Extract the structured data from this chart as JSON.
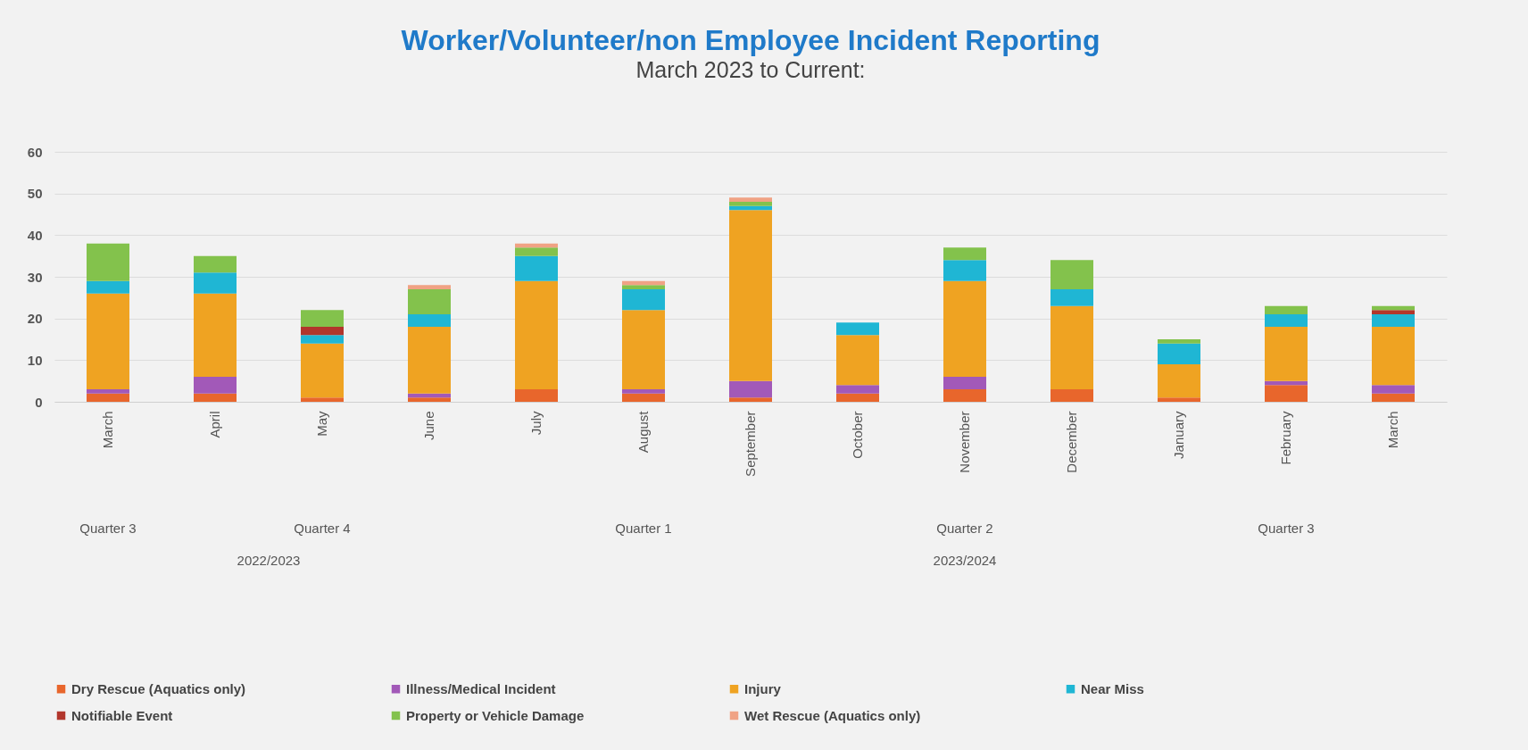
{
  "chart_data": {
    "type": "bar",
    "title": "Worker/Volunteer/non Employee Incident Reporting",
    "subtitle": "March 2023 to Current:",
    "stacked": true,
    "grid": "y",
    "legend": "bottom",
    "ylim": [
      0,
      60
    ],
    "yticks": [
      0,
      10,
      20,
      30,
      40,
      50,
      60
    ],
    "categories": [
      "March",
      "April",
      "May",
      "June",
      "July",
      "August",
      "September",
      "October",
      "November",
      "December",
      "January",
      "February",
      "March"
    ],
    "series": [
      {
        "name": "Dry Rescue (Aquatics only)",
        "color": "#e8662c",
        "values": [
          2,
          2,
          1,
          1,
          3,
          2,
          1,
          2,
          3,
          3,
          1,
          4,
          2
        ]
      },
      {
        "name": "Illness/Medical Incident",
        "color": "#a259b8",
        "values": [
          1,
          4,
          0,
          1,
          0,
          1,
          4,
          2,
          3,
          0,
          0,
          1,
          2
        ]
      },
      {
        "name": "Injury",
        "color": "#efa322",
        "values": [
          23,
          20,
          13,
          16,
          26,
          19,
          41,
          12,
          23,
          20,
          8,
          13,
          14
        ]
      },
      {
        "name": "Near Miss",
        "color": "#1fb6d4",
        "values": [
          3,
          5,
          2,
          3,
          6,
          5,
          1,
          3,
          5,
          4,
          5,
          3,
          3
        ]
      },
      {
        "name": "Notifiable Event",
        "color": "#b2362c",
        "values": [
          0,
          0,
          2,
          0,
          0,
          0,
          0,
          0,
          0,
          0,
          0,
          0,
          1
        ]
      },
      {
        "name": "Property or Vehicle Damage",
        "color": "#83c24c",
        "values": [
          9,
          4,
          4,
          6,
          2,
          1,
          1,
          0,
          3,
          7,
          1,
          2,
          1
        ]
      },
      {
        "name": "Wet Rescue (Aquatics only)",
        "color": "#f0a284",
        "values": [
          0,
          0,
          0,
          1,
          1,
          1,
          1,
          0,
          0,
          0,
          0,
          0,
          0
        ]
      }
    ],
    "annotations": [
      "Quarter 3",
      "Quarter 4",
      "Quarter 1",
      "Quarter 2",
      "Quarter 3",
      "2022/2023",
      "2023/2024"
    ]
  }
}
